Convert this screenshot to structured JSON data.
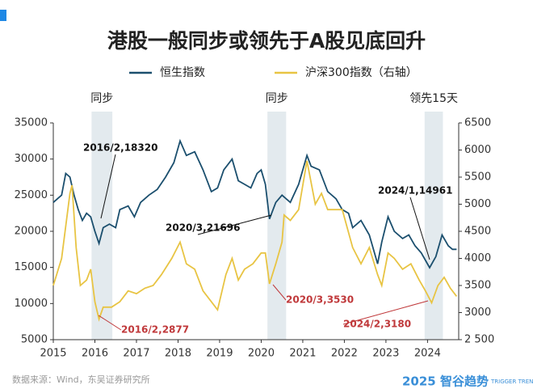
{
  "chart_data": {
    "type": "line",
    "title": "港股一般同步或领先于A股见底回升",
    "xlim": [
      2015,
      2024.75
    ],
    "xticks": [
      2015,
      2016,
      2017,
      2018,
      2019,
      2020,
      2021,
      2022,
      2023,
      2024
    ],
    "ylim": [
      5000,
      35000
    ],
    "yticks": [
      5000,
      10000,
      15000,
      20000,
      25000,
      30000,
      35000
    ],
    "y2lim": [
      2500,
      6500
    ],
    "y2ticks": [
      {
        "value": 2500,
        "label": "2 500"
      },
      3000,
      3500,
      4000,
      4500,
      5000,
      5500,
      6000,
      6500
    ],
    "series": [
      {
        "name": "恒生指数",
        "color": "#1b4f6e",
        "x": [
          2015.0,
          2015.1,
          2015.2,
          2015.3,
          2015.4,
          2015.5,
          2015.6,
          2015.7,
          2015.8,
          2015.9,
          2016.0,
          2016.1,
          2016.2,
          2016.35,
          2016.5,
          2016.6,
          2016.8,
          2016.95,
          2017.1,
          2017.3,
          2017.5,
          2017.7,
          2017.9,
          2018.05,
          2018.2,
          2018.4,
          2018.6,
          2018.8,
          2018.95,
          2019.1,
          2019.3,
          2019.45,
          2019.6,
          2019.75,
          2019.9,
          2020.0,
          2020.1,
          2020.2,
          2020.35,
          2020.5,
          2020.7,
          2020.9,
          2021.1,
          2021.2,
          2021.4,
          2021.6,
          2021.8,
          2021.95,
          2022.1,
          2022.2,
          2022.4,
          2022.6,
          2022.8,
          2022.9,
          2023.05,
          2023.2,
          2023.4,
          2023.55,
          2023.7,
          2023.85,
          2024.05,
          2024.2,
          2024.35,
          2024.5,
          2024.6,
          2024.7
        ],
        "values": [
          24000,
          24500,
          25000,
          28000,
          27500,
          25000,
          23000,
          21500,
          22500,
          22000,
          20000,
          18320,
          20500,
          21000,
          20500,
          23000,
          23500,
          22000,
          24000,
          25000,
          25800,
          27500,
          29500,
          32500,
          30500,
          31000,
          28500,
          25500,
          26000,
          28500,
          30000,
          27000,
          26500,
          26000,
          28000,
          28500,
          26500,
          21696,
          24000,
          25000,
          24000,
          26500,
          30500,
          29000,
          28500,
          25500,
          24500,
          23000,
          22500,
          20500,
          21500,
          19500,
          15500,
          18500,
          22000,
          20000,
          19000,
          19500,
          18000,
          17000,
          14961,
          16500,
          19500,
          18000,
          17500,
          17500
        ]
      },
      {
        "name": "沪深300指数（右轴）",
        "color": "#e8c443",
        "axis": "y2",
        "x": [
          2015.0,
          2015.2,
          2015.4,
          2015.45,
          2015.55,
          2015.65,
          2015.8,
          2015.9,
          2016.0,
          2016.1,
          2016.2,
          2016.4,
          2016.6,
          2016.8,
          2017.0,
          2017.2,
          2017.4,
          2017.6,
          2017.85,
          2018.05,
          2018.2,
          2018.4,
          2018.6,
          2018.8,
          2018.95,
          2019.15,
          2019.3,
          2019.45,
          2019.6,
          2019.8,
          2020.0,
          2020.1,
          2020.2,
          2020.35,
          2020.5,
          2020.55,
          2020.7,
          2020.9,
          2021.1,
          2021.3,
          2021.45,
          2021.6,
          2021.8,
          2021.95,
          2022.2,
          2022.4,
          2022.6,
          2022.8,
          2022.9,
          2023.05,
          2023.2,
          2023.4,
          2023.6,
          2023.8,
          2023.95,
          2024.1,
          2024.25,
          2024.4,
          2024.55,
          2024.7
        ],
        "values": [
          3500,
          4000,
          5200,
          5350,
          4200,
          3500,
          3600,
          3800,
          3200,
          2877,
          3100,
          3100,
          3200,
          3400,
          3350,
          3450,
          3500,
          3700,
          4000,
          4300,
          3900,
          3800,
          3400,
          3200,
          3050,
          3700,
          4000,
          3600,
          3800,
          3900,
          4100,
          4100,
          3530,
          3900,
          4300,
          4800,
          4700,
          4900,
          5800,
          5000,
          5200,
          4900,
          4900,
          4900,
          4200,
          3900,
          4200,
          3700,
          3500,
          4100,
          4000,
          3800,
          3900,
          3600,
          3400,
          3180,
          3500,
          3650,
          3450,
          3300
        ]
      }
    ],
    "bands": [
      {
        "start": 2015.92,
        "end": 2016.42,
        "label": "同步"
      },
      {
        "start": 2020.15,
        "end": 2020.6,
        "label": "同步"
      },
      {
        "start": 2023.93,
        "end": 2024.37,
        "label": "领先15天"
      }
    ],
    "annotations": [
      {
        "text": "2016/2,18320",
        "color": "#111111"
      },
      {
        "text": "2020/3,21696",
        "color": "#111111"
      },
      {
        "text": "2024/1,14961",
        "color": "#111111"
      },
      {
        "text": "2016/2,2877",
        "color": "#c0393b"
      },
      {
        "text": "2020/3,3530",
        "color": "#c0393b"
      },
      {
        "text": "2024/2,3180",
        "color": "#c0393b"
      }
    ],
    "source": "数据来源：Wind，东吴证券研究所",
    "logo": "2025 智谷趋势",
    "logo_sub": "TRIGGER TREND"
  }
}
